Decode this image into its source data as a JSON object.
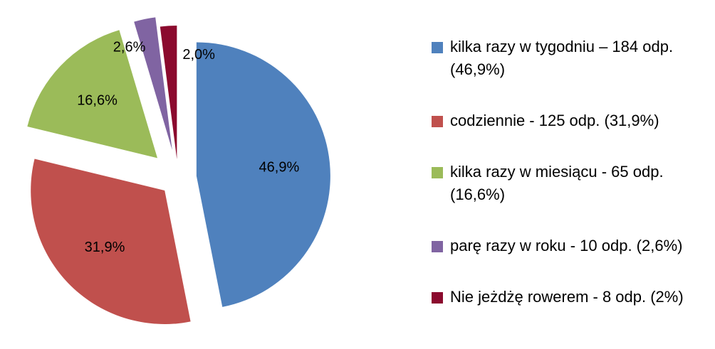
{
  "chart_data": {
    "type": "pie",
    "categories": [
      "kilka razy w tygodniu – 184 odp. (46,9%)",
      "codziennie - 125 odp. (31,9%)",
      "kilka razy w miesiącu - 65 odp. (16,6%)",
      "parę razy w roku - 10 odp. (2,6%)",
      "Nie jeżdżę rowerem - 8 odp. (2%)"
    ],
    "values": [
      46.9,
      31.9,
      16.6,
      2.6,
      2.0
    ],
    "value_labels": [
      "46,9%",
      "31,9%",
      "16,6%",
      "2,6%",
      "2,0%"
    ],
    "colors": [
      "#4f81bd",
      "#c0504d",
      "#9bbb59",
      "#8064a2",
      "#8b0a2e"
    ],
    "legend": "right"
  }
}
